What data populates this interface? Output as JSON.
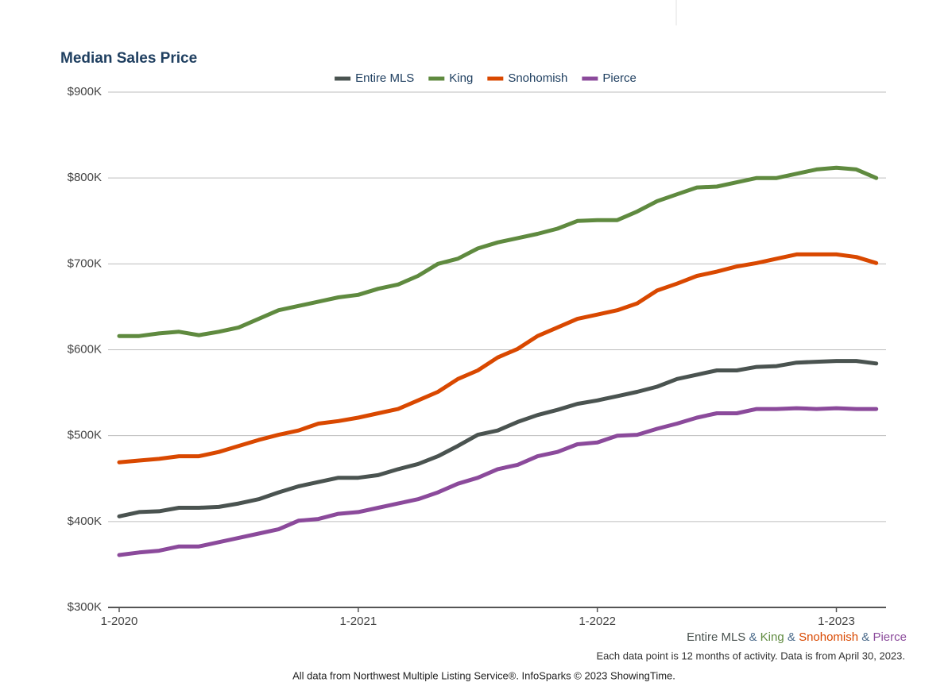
{
  "chart_data": {
    "type": "line",
    "title": "Median Sales Price",
    "categories": [
      "1-2020",
      null,
      null,
      null,
      null,
      null,
      null,
      null,
      null,
      null,
      null,
      null,
      "1-2021",
      null,
      null,
      null,
      null,
      null,
      null,
      null,
      null,
      null,
      null,
      null,
      "1-2022",
      null,
      null,
      null,
      null,
      null,
      null,
      null,
      null,
      null,
      null,
      null,
      "1-2023",
      null,
      null
    ],
    "series": [
      {
        "name": "Entire MLS",
        "color": "#4a5350",
        "values": [
          406,
          411,
          412,
          416,
          416,
          417,
          421,
          426,
          434,
          441,
          446,
          451,
          451,
          454,
          461,
          467,
          476,
          488,
          501,
          506,
          516,
          524,
          530,
          537,
          541,
          546,
          551,
          557,
          566,
          571,
          576,
          576,
          580,
          581,
          585,
          586,
          587,
          587,
          584
        ]
      },
      {
        "name": "King",
        "color": "#5f8a3f",
        "values": [
          616,
          616,
          619,
          621,
          617,
          621,
          626,
          636,
          646,
          651,
          656,
          661,
          664,
          671,
          676,
          686,
          700,
          706,
          718,
          725,
          730,
          735,
          741,
          750,
          751,
          751,
          761,
          773,
          781,
          789,
          790,
          795,
          800,
          800,
          805,
          810,
          812,
          810,
          800
        ]
      },
      {
        "name": "Snohomish",
        "color": "#d94800",
        "values": [
          469,
          471,
          473,
          476,
          476,
          481,
          488,
          495,
          501,
          506,
          514,
          517,
          521,
          526,
          531,
          541,
          551,
          566,
          576,
          591,
          601,
          616,
          626,
          636,
          641,
          646,
          654,
          669,
          677,
          686,
          691,
          697,
          701,
          706,
          711,
          711,
          711,
          708,
          701
        ]
      },
      {
        "name": "Pierce",
        "color": "#8b4a9b",
        "values": [
          361,
          364,
          366,
          371,
          371,
          376,
          381,
          386,
          391,
          401,
          403,
          409,
          411,
          416,
          421,
          426,
          434,
          444,
          451,
          461,
          466,
          476,
          481,
          490,
          492,
          500,
          501,
          508,
          514,
          521,
          526,
          526,
          531,
          531,
          532,
          531,
          532,
          531,
          531
        ]
      }
    ],
    "ylim": [
      300,
      900
    ],
    "yticks": [
      {
        "value": 300,
        "label": "$300K"
      },
      {
        "value": 400,
        "label": "$400K"
      },
      {
        "value": 500,
        "label": "$500K"
      },
      {
        "value": 600,
        "label": "$600K"
      },
      {
        "value": 700,
        "label": "$700K"
      },
      {
        "value": 800,
        "label": "$800K"
      },
      {
        "value": 900,
        "label": "$900K"
      }
    ],
    "grid": true,
    "legend": "top",
    "legend_joiner": "&",
    "notes": [
      "Each data point is 12 months of activity. Data is from April 30, 2023.",
      "All data from Northwest Multiple Listing Service®. InfoSparks © 2023 ShowingTime."
    ]
  }
}
